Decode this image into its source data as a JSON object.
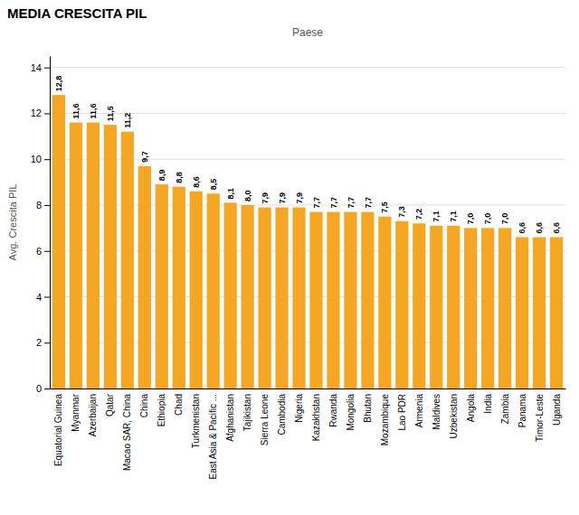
{
  "chart_data": {
    "type": "bar",
    "title": "MEDIA CRESCITA PIL",
    "xlabel": "Paese",
    "ylabel": "Avg. Crescita PIL",
    "categories": [
      "Equatorial Guinea",
      "Myanmar",
      "Azerbaijan",
      "Qatar",
      "Macao SAR, China",
      "China",
      "Ethiopia",
      "Chad",
      "Turkmenistan",
      "East Asia & Pacific ...",
      "Afghanistan",
      "Tajikistan",
      "Sierra Leone",
      "Cambodia",
      "Nigeria",
      "Kazakhstan",
      "Rwanda",
      "Mongolia",
      "Bhutan",
      "Mozambique",
      "Lao PDR",
      "Armenia",
      "Maldives",
      "Uzbekistan",
      "Angola",
      "India",
      "Zambia",
      "Panama",
      "Timor-Leste",
      "Uganda"
    ],
    "values": [
      12.8,
      11.6,
      11.6,
      11.5,
      11.2,
      9.7,
      8.9,
      8.8,
      8.6,
      8.5,
      8.1,
      8.0,
      7.9,
      7.9,
      7.9,
      7.7,
      7.7,
      7.7,
      7.7,
      7.5,
      7.3,
      7.2,
      7.1,
      7.1,
      7.0,
      7.0,
      7.0,
      6.6,
      6.6,
      6.6
    ],
    "value_labels": [
      "12,8",
      "11,6",
      "11,6",
      "11,5",
      "11,2",
      "9,7",
      "8,9",
      "8,8",
      "8,6",
      "8,5",
      "8,1",
      "8,0",
      "7,9",
      "7,9",
      "7,9",
      "7,7",
      "7,7",
      "7,7",
      "7,7",
      "7,5",
      "7,3",
      "7,2",
      "7,1",
      "7,1",
      "7,0",
      "7,0",
      "7,0",
      "6,6",
      "6,6",
      "6,6"
    ],
    "data_labels": true,
    "color": "#F5A623",
    "ylim": [
      0,
      14.5
    ],
    "yticks": [
      0,
      2,
      4,
      6,
      8,
      10,
      12,
      14
    ],
    "grid": true
  }
}
